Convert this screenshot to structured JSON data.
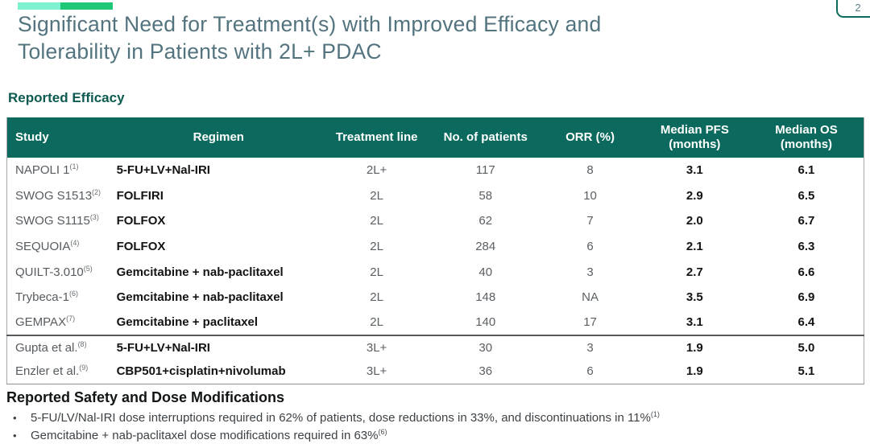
{
  "badge": {
    "number": "2"
  },
  "title": {
    "line1": "Significant Need for Treatment(s) with Improved Efficacy and",
    "line2": "Tolerability in Patients with 2L+ PDAC"
  },
  "efficacy": {
    "heading": "Reported Efficacy"
  },
  "table": {
    "columns": [
      "Study",
      "Regimen",
      "Treatment line",
      "No. of patients",
      "ORR (%)",
      "Median PFS (months)",
      "Median OS (months)"
    ],
    "rows": [
      {
        "study": "NAPOLI 1",
        "study_ref": "(1)",
        "regimen": "5-FU+LV+Nal-IRI",
        "treatment_line": "2L+",
        "patients": "117",
        "orr": "8",
        "median_pfs": "3.1",
        "median_os": "6.1",
        "group_separator": false
      },
      {
        "study": "SWOG S1513",
        "study_ref": "(2)",
        "regimen": "FOLFIRI",
        "treatment_line": "2L",
        "patients": "58",
        "orr": "10",
        "median_pfs": "2.9",
        "median_os": "6.5",
        "group_separator": false
      },
      {
        "study": "SWOG S1115",
        "study_ref": "(3)",
        "regimen": "FOLFOX",
        "treatment_line": "2L",
        "patients": "62",
        "orr": "7",
        "median_pfs": "2.0",
        "median_os": "6.7",
        "group_separator": false
      },
      {
        "study": "SEQUOIA",
        "study_ref": "(4)",
        "regimen": "FOLFOX",
        "treatment_line": "2L",
        "patients": "284",
        "orr": "6",
        "median_pfs": "2.1",
        "median_os": "6.3",
        "group_separator": false
      },
      {
        "study": "QUILT-3.010",
        "study_ref": "(5)",
        "regimen": "Gemcitabine + nab-paclitaxel",
        "treatment_line": "2L",
        "patients": "40",
        "orr": "3",
        "median_pfs": "2.7",
        "median_os": "6.6",
        "group_separator": false
      },
      {
        "study": "Trybeca-1",
        "study_ref": "(6)",
        "regimen": "Gemcitabine + nab-paclitaxel",
        "treatment_line": "2L",
        "patients": "148",
        "orr": "NA",
        "median_pfs": "3.5",
        "median_os": "6.9",
        "group_separator": false
      },
      {
        "study": "GEMPAX",
        "study_ref": "(7)",
        "regimen": "Gemcitabine + paclitaxel",
        "treatment_line": "2L",
        "patients": "140",
        "orr": "17",
        "median_pfs": "3.1",
        "median_os": "6.4",
        "group_separator": false
      },
      {
        "study": "Gupta et al.",
        "study_ref": "(8)",
        "regimen": "5-FU+LV+Nal-IRI",
        "treatment_line": "3L+",
        "patients": "30",
        "orr": "3",
        "median_pfs": "1.9",
        "median_os": "5.0",
        "group_separator": true
      },
      {
        "study": "Enzler et al.",
        "study_ref": "(9)",
        "regimen": "CBP501+cisplatin+nivolumab",
        "treatment_line": "3L+",
        "patients": "36",
        "orr": "6",
        "median_pfs": "1.9",
        "median_os": "5.1",
        "group_separator": false
      }
    ]
  },
  "safety": {
    "heading": "Reported Safety and Dose Modifications",
    "bullets": [
      {
        "text": "5-FU/LV/Nal-IRI dose interruptions required in 62% of patients, dose reductions in 33%, and discontinuations in 11%",
        "ref": "(1)"
      },
      {
        "text": "Gemcitabine + nab-paclitaxel dose modifications required in 63%",
        "ref": "(6)"
      }
    ]
  },
  "colors": {
    "accent_light": "#7df2cf",
    "accent_green": "#1fc877",
    "header_bg": "#0b6a5d",
    "heading_teal": "#0c5a50",
    "title_slate": "#53747f"
  }
}
